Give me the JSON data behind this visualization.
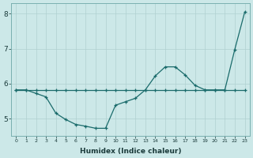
{
  "line1_x": [
    0,
    1,
    2,
    3,
    4,
    5,
    6,
    7,
    8,
    9,
    10,
    11,
    12,
    13,
    14,
    15,
    16,
    17,
    18,
    19,
    20,
    21,
    22,
    23
  ],
  "line1_y": [
    5.82,
    5.82,
    5.82,
    5.82,
    5.82,
    5.82,
    5.82,
    5.82,
    5.82,
    5.82,
    5.82,
    5.82,
    5.82,
    5.82,
    5.82,
    5.82,
    5.82,
    5.82,
    5.82,
    5.82,
    5.82,
    5.82,
    5.82,
    5.82
  ],
  "line2_x": [
    0,
    1,
    2,
    3,
    4,
    5,
    6,
    7,
    8,
    9,
    10,
    11,
    12,
    13,
    14,
    15,
    16,
    17,
    18,
    19,
    20,
    21,
    22,
    23
  ],
  "line2_y": [
    5.82,
    5.82,
    5.72,
    5.62,
    5.15,
    4.97,
    4.83,
    4.78,
    4.72,
    4.72,
    5.38,
    5.48,
    5.58,
    5.82,
    6.22,
    6.48,
    6.48,
    6.25,
    5.95,
    5.82,
    5.82,
    5.82,
    6.98,
    8.05
  ],
  "xlabel": "Humidex (Indice chaleur)",
  "xlim": [
    -0.5,
    23.5
  ],
  "ylim": [
    4.5,
    8.3
  ],
  "yticks": [
    5,
    6,
    7,
    8
  ],
  "xticks": [
    0,
    1,
    2,
    3,
    4,
    5,
    6,
    7,
    8,
    9,
    10,
    11,
    12,
    13,
    14,
    15,
    16,
    17,
    18,
    19,
    20,
    21,
    22,
    23
  ],
  "line_color": "#1a6b6b",
  "bg_color": "#cce8e8",
  "grid_color": "#b0d0d0"
}
